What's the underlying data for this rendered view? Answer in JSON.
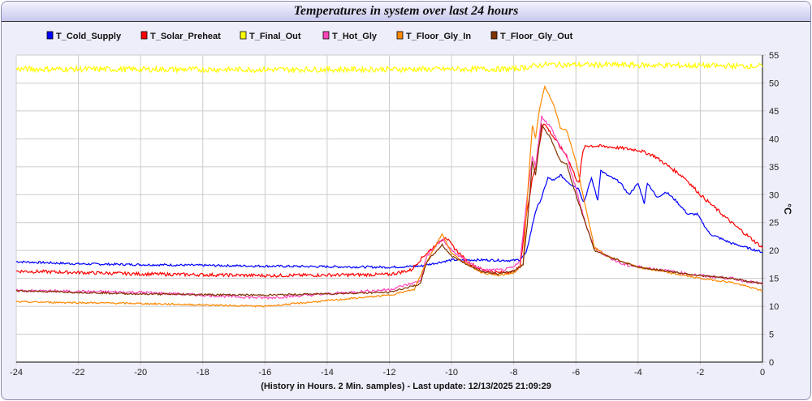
{
  "chart_data": {
    "type": "line",
    "title": "Temperatures in system over last 24 hours",
    "xlabel": "(History in Hours. 2 Min. samples) - Last update: 12/13/2025 21:09:29",
    "ylabel": "°C",
    "xlim": [
      -24,
      0
    ],
    "ylim": [
      0,
      55
    ],
    "xticks": [
      -24,
      -22,
      -20,
      -18,
      -16,
      -14,
      -12,
      -10,
      -8,
      -6,
      -4,
      -2,
      0
    ],
    "yticks": [
      0,
      5,
      10,
      15,
      20,
      25,
      30,
      35,
      40,
      45,
      50,
      55
    ],
    "grid": true,
    "legend": "top",
    "series": [
      {
        "name": "T_Cold_Supply",
        "color": "#0000ff",
        "noise": 0.2,
        "points": [
          [
            -24,
            18
          ],
          [
            -22,
            17.6
          ],
          [
            -16,
            17.2
          ],
          [
            -12,
            17
          ],
          [
            -11,
            17.2
          ],
          [
            -10,
            18.3
          ],
          [
            -9,
            18.3
          ],
          [
            -8,
            18.2
          ],
          [
            -7.8,
            18.4
          ],
          [
            -7.6,
            19.5
          ],
          [
            -7.3,
            27
          ],
          [
            -7.1,
            29.5
          ],
          [
            -6.9,
            33
          ],
          [
            -6.7,
            32.5
          ],
          [
            -6.5,
            33.5
          ],
          [
            -6.2,
            32
          ],
          [
            -5.9,
            31
          ],
          [
            -5.75,
            28.5
          ],
          [
            -5.5,
            33
          ],
          [
            -5.3,
            29
          ],
          [
            -5.2,
            34.3
          ],
          [
            -5,
            33.5
          ],
          [
            -4.6,
            32.3
          ],
          [
            -4.3,
            30
          ],
          [
            -4,
            32
          ],
          [
            -3.8,
            28.5
          ],
          [
            -3.7,
            32.2
          ],
          [
            -3.4,
            29.5
          ],
          [
            -3.1,
            30.5
          ],
          [
            -2.8,
            29
          ],
          [
            -2.4,
            26.5
          ],
          [
            -2.1,
            26.5
          ],
          [
            -1.7,
            23
          ],
          [
            -1,
            21.3
          ],
          [
            0,
            19.7
          ]
        ]
      },
      {
        "name": "T_Solar_Preheat",
        "color": "#ff0000",
        "noise": 0.3,
        "points": [
          [
            -24,
            16.3
          ],
          [
            -20,
            15.8
          ],
          [
            -16,
            15.5
          ],
          [
            -12,
            15.7
          ],
          [
            -11.3,
            16.5
          ],
          [
            -10.9,
            19
          ],
          [
            -10.5,
            21
          ],
          [
            -10.2,
            22.5
          ],
          [
            -10,
            21
          ],
          [
            -9.5,
            18
          ],
          [
            -9,
            16.5
          ],
          [
            -8.5,
            16
          ],
          [
            -8,
            16.2
          ],
          [
            -7.8,
            17
          ],
          [
            -7.6,
            26
          ],
          [
            -7.4,
            33
          ],
          [
            -7.3,
            35
          ],
          [
            -7.05,
            43
          ],
          [
            -6.8,
            41
          ],
          [
            -6.5,
            38.5
          ],
          [
            -6.3,
            37
          ],
          [
            -6,
            33
          ],
          [
            -5.9,
            32
          ],
          [
            -5.8,
            37
          ],
          [
            -5.7,
            38.8
          ],
          [
            -5,
            38.6
          ],
          [
            -4,
            38
          ],
          [
            -3.5,
            37
          ],
          [
            -3,
            35
          ],
          [
            -2.5,
            33
          ],
          [
            -2,
            30
          ],
          [
            -1,
            25
          ],
          [
            0,
            20.5
          ]
        ]
      },
      {
        "name": "T_Final_Out",
        "color": "#ffff00",
        "noise": 0.5,
        "points": [
          [
            -24,
            52.5
          ],
          [
            -16,
            52.4
          ],
          [
            -8,
            52.5
          ],
          [
            -7,
            53.3
          ],
          [
            -4,
            53.2
          ],
          [
            0,
            53
          ]
        ]
      },
      {
        "name": "T_Hot_Gly",
        "color": "#ff44bb",
        "noise": 0.25,
        "points": [
          [
            -24,
            12.8
          ],
          [
            -20,
            12.5
          ],
          [
            -16,
            11.5
          ],
          [
            -14,
            12.2
          ],
          [
            -12,
            13
          ],
          [
            -11,
            14.5
          ],
          [
            -10.8,
            19
          ],
          [
            -10.3,
            22
          ],
          [
            -10,
            20
          ],
          [
            -9.5,
            18
          ],
          [
            -9,
            16.5
          ],
          [
            -8.3,
            16.5
          ],
          [
            -8,
            17
          ],
          [
            -7.8,
            18
          ],
          [
            -7.6,
            28
          ],
          [
            -7.4,
            37
          ],
          [
            -7.3,
            35
          ],
          [
            -7.1,
            44
          ],
          [
            -6.8,
            42
          ],
          [
            -6.5,
            38.5
          ],
          [
            -6.3,
            37
          ],
          [
            -6,
            31
          ],
          [
            -5.7,
            25
          ],
          [
            -5.4,
            20.5
          ],
          [
            -5,
            19
          ],
          [
            -4.5,
            17.5
          ],
          [
            -3,
            16.3
          ],
          [
            -2,
            15.5
          ],
          [
            -1,
            15
          ],
          [
            0,
            14
          ]
        ]
      },
      {
        "name": "T_Floor_Gly_In",
        "color": "#ff8800",
        "noise": 0.15,
        "points": [
          [
            -24,
            10.8
          ],
          [
            -20,
            10.5
          ],
          [
            -16,
            10
          ],
          [
            -14,
            11
          ],
          [
            -12,
            12
          ],
          [
            -11.2,
            13
          ],
          [
            -10.8,
            18
          ],
          [
            -10.3,
            23
          ],
          [
            -10,
            19.5
          ],
          [
            -9.5,
            17.5
          ],
          [
            -9,
            16
          ],
          [
            -8.5,
            15.5
          ],
          [
            -8,
            16
          ],
          [
            -7.7,
            17.5
          ],
          [
            -7.55,
            30.5
          ],
          [
            -7.4,
            42.5
          ],
          [
            -7.3,
            40
          ],
          [
            -7.15,
            46
          ],
          [
            -7,
            49.3
          ],
          [
            -6.7,
            46
          ],
          [
            -6.5,
            42
          ],
          [
            -6.3,
            41.5
          ],
          [
            -6,
            36
          ],
          [
            -5.7,
            28
          ],
          [
            -5.4,
            20.5
          ],
          [
            -5,
            19
          ],
          [
            -4,
            17
          ],
          [
            -2,
            15
          ],
          [
            -1,
            14.3
          ],
          [
            0,
            12.8
          ]
        ]
      },
      {
        "name": "T_Floor_Gly_Out",
        "color": "#803300",
        "noise": 0.15,
        "points": [
          [
            -24,
            12.8
          ],
          [
            -20,
            12.2
          ],
          [
            -16,
            12
          ],
          [
            -12,
            12.5
          ],
          [
            -11,
            14
          ],
          [
            -10.8,
            18
          ],
          [
            -10.3,
            21
          ],
          [
            -10,
            19
          ],
          [
            -9.5,
            17.5
          ],
          [
            -9,
            16.2
          ],
          [
            -8.5,
            15.8
          ],
          [
            -8,
            16.3
          ],
          [
            -7.7,
            17.5
          ],
          [
            -7.55,
            25.5
          ],
          [
            -7.4,
            36
          ],
          [
            -7.3,
            33.5
          ],
          [
            -7.1,
            42.5
          ],
          [
            -6.8,
            40
          ],
          [
            -6.5,
            36
          ],
          [
            -6.3,
            35.5
          ],
          [
            -6,
            30
          ],
          [
            -5.7,
            25
          ],
          [
            -5.4,
            20
          ],
          [
            -5,
            19
          ],
          [
            -4,
            17
          ],
          [
            -2,
            15.5
          ],
          [
            -1,
            15
          ],
          [
            0,
            14
          ]
        ]
      }
    ]
  }
}
